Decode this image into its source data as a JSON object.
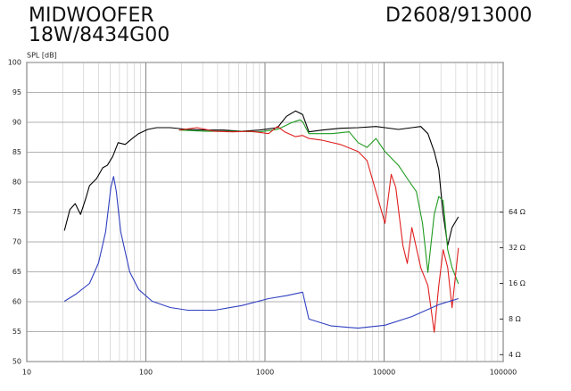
{
  "chart_data": {
    "type": "line",
    "title": [
      "MIDWOOFER",
      "18W/8434G00"
    ],
    "subtitle": "D2608/913000",
    "ylabel": "SPL [dB]",
    "xscale": "log",
    "y2scale": "log",
    "grid": true,
    "xlim": [
      10,
      100000
    ],
    "xticks": [
      10,
      100,
      1000,
      10000,
      100000
    ],
    "ylim": [
      50,
      100
    ],
    "yticks": [
      50,
      55,
      60,
      65,
      70,
      75,
      80,
      85,
      90,
      95,
      100
    ],
    "y2lim": [
      3.5,
      1176
    ],
    "y2ticks": [
      {
        "value": 4,
        "label": "4 Ω"
      },
      {
        "value": 8,
        "label": "8 Ω"
      },
      {
        "value": 16,
        "label": "16 Ω"
      },
      {
        "value": 32,
        "label": "32 Ω"
      },
      {
        "value": 64,
        "label": "64 Ω"
      }
    ],
    "series": [
      {
        "color": "#000000",
        "x": [
          20.7,
          23,
          25.5,
          28.3,
          31.3,
          33.6,
          38.6,
          43.5,
          47.5,
          52.7,
          58.5,
          67,
          77,
          87,
          103.5,
          123,
          160,
          225,
          319,
          451,
          638,
          902,
          1274,
          1515,
          1803,
          2070,
          2335,
          3027,
          4285,
          6053,
          8551,
          10180,
          13190,
          17100,
          20320,
          23330,
          26360,
          28770,
          31340,
          34200,
          37240,
          42070
        ],
        "values": [
          71.9,
          75.4,
          76.4,
          74.6,
          77.3,
          79.4,
          80.6,
          82.4,
          82.8,
          84.3,
          86.6,
          86.3,
          87.3,
          88.1,
          88.8,
          89.1,
          89.1,
          88.8,
          88.7,
          88.7,
          88.5,
          88.7,
          89.1,
          91.0,
          91.9,
          91.3,
          88.4,
          88.7,
          89.0,
          89.1,
          89.3,
          89.1,
          88.8,
          89.1,
          89.3,
          88.1,
          85.1,
          82.1,
          74.6,
          69.4,
          72.4,
          74.2
        ]
      },
      {
        "color": "#1f9a1f",
        "x": [
          190,
          319,
          536,
          902,
          1274,
          1652,
          1963,
          2070,
          2335,
          3600,
          5093,
          6053,
          7194,
          8551,
          10180,
          13190,
          15670,
          18660,
          21040,
          23330,
          26360,
          28770,
          31340,
          34200,
          37240,
          42070
        ],
        "values": [
          88.7,
          88.5,
          88.5,
          88.4,
          88.8,
          89.9,
          90.4,
          90.1,
          88.1,
          88.1,
          88.4,
          86.6,
          85.8,
          87.3,
          85.1,
          82.8,
          80.6,
          78.4,
          73.1,
          64.9,
          74.6,
          77.6,
          76.9,
          68.7,
          65.7,
          63.0
        ]
      },
      {
        "color": "#e02020",
        "x": [
          190,
          269,
          379,
          536,
          759,
          1072,
          1274,
          1463,
          1803,
          2070,
          2335,
          3027,
          4285,
          6053,
          7194,
          8551,
          10180,
          11480,
          12530,
          14390,
          15670,
          17100,
          20320,
          23330,
          26360,
          28770,
          31340,
          34200,
          37240,
          42070
        ],
        "values": [
          88.7,
          89.1,
          88.5,
          88.4,
          88.5,
          88.1,
          89.3,
          88.4,
          87.6,
          87.8,
          87.3,
          87.0,
          86.3,
          85.1,
          83.6,
          78.4,
          73.1,
          81.3,
          79.1,
          69.4,
          66.4,
          72.4,
          65.7,
          62.7,
          54.9,
          62.7,
          68.7,
          65.7,
          59.0,
          69.0
        ]
      },
      {
        "color": "#3040c0",
        "axis": "y2",
        "x": [
          20.7,
          25.9,
          33.6,
          40,
          45.9,
          50.9,
          53.6,
          56.5,
          61.5,
          73.2,
          87,
          113,
          160,
          225,
          379,
          638,
          1072,
          1515,
          2070,
          2335,
          3600,
          6053,
          10180,
          17100,
          28770,
          42070
        ],
        "values": [
          11.3,
          13.0,
          16.0,
          23.8,
          43.7,
          104,
          128,
          95.3,
          43.7,
          20.0,
          14.2,
          11.3,
          10.0,
          9.5,
          9.5,
          10.4,
          11.9,
          12.6,
          13.5,
          8.0,
          7.0,
          6.7,
          7.1,
          8.4,
          10.6,
          11.9
        ]
      }
    ]
  }
}
